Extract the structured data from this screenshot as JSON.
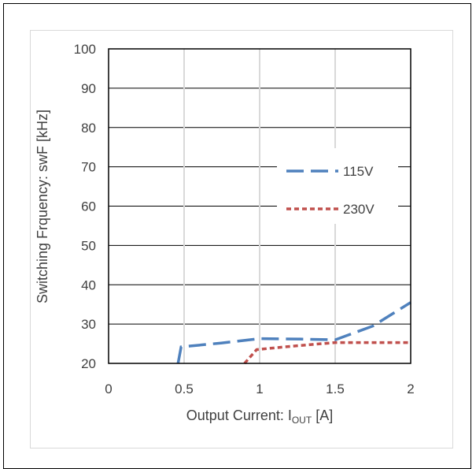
{
  "chart_data": {
    "type": "line",
    "xlabel": {
      "main": "Output Current: I",
      "sub": "OUT",
      "unit": " [A]"
    },
    "ylabel": "Switching Frquency: swF [kHz]",
    "xlim": [
      0,
      2
    ],
    "ylim": [
      20,
      100
    ],
    "x_ticks": [
      "0",
      "0.5",
      "1",
      "1.5",
      "2"
    ],
    "y_ticks": [
      "20",
      "30",
      "40",
      "50",
      "60",
      "70",
      "80",
      "90",
      "100"
    ],
    "grid": "horizontal and vertical",
    "legend_position": "right",
    "series": [
      {
        "name": "115V",
        "color": "#4f81bd",
        "style": "long-dash",
        "points": [
          [
            0.46,
            20
          ],
          [
            0.48,
            24.2
          ],
          [
            0.75,
            25.2
          ],
          [
            1.0,
            26.3
          ],
          [
            1.25,
            26.2
          ],
          [
            1.5,
            26.0
          ],
          [
            1.75,
            29.5
          ],
          [
            2.0,
            35.5
          ]
        ]
      },
      {
        "name": "230V",
        "color": "#c0504d",
        "style": "short-dash",
        "points": [
          [
            0.9,
            20
          ],
          [
            0.98,
            23.5
          ],
          [
            1.25,
            24.5
          ],
          [
            1.5,
            25.3
          ],
          [
            1.75,
            25.3
          ],
          [
            2.0,
            25.3
          ]
        ]
      }
    ]
  }
}
